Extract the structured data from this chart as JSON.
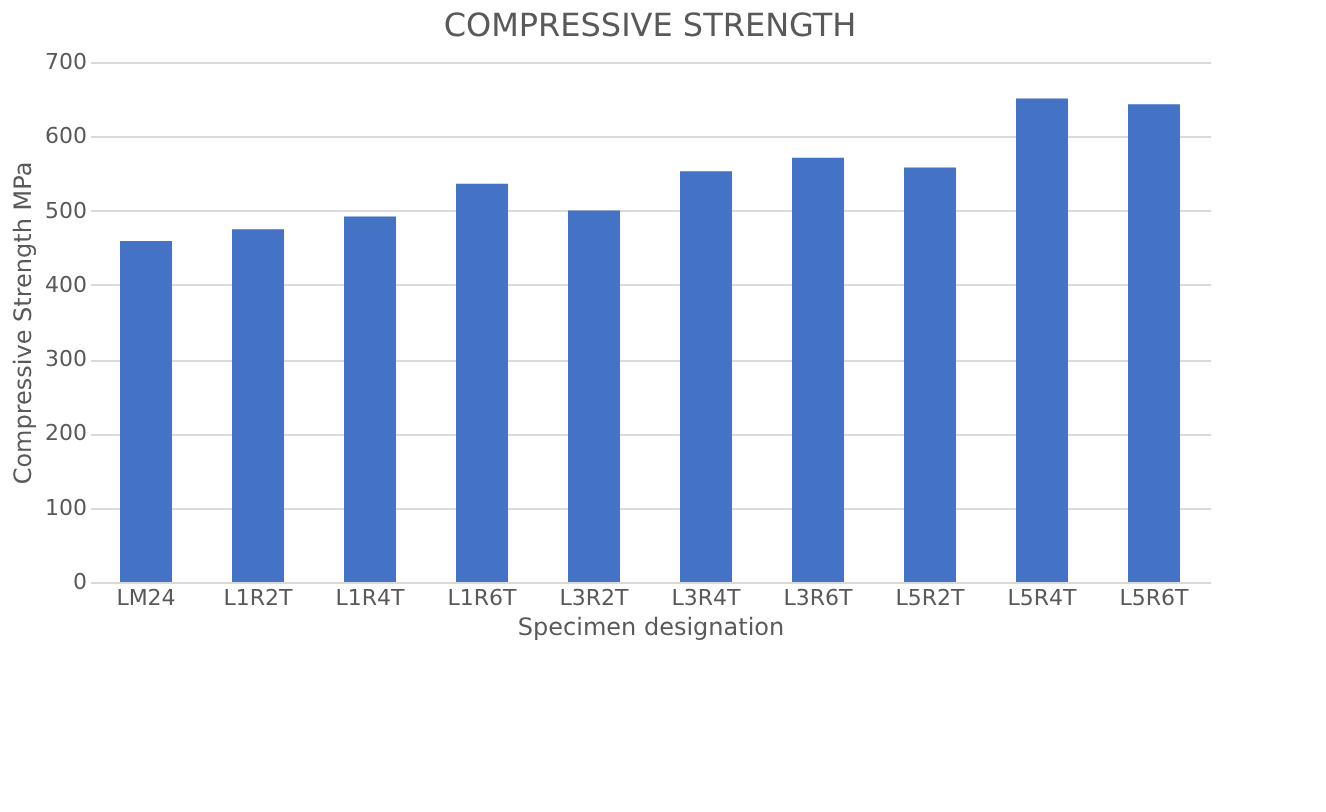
{
  "chart_data": {
    "type": "bar",
    "title": "COMPRESSIVE STRENGTH",
    "xlabel": "Specimen designation",
    "ylabel": "Compressive Strength MPa",
    "categories": [
      "LM24",
      "L1R2T",
      "L1R4T",
      "L1R6T",
      "L3R2T",
      "L3R4T",
      "L3R6T",
      "L5R2T",
      "L5R4T",
      "L5R6T"
    ],
    "values": [
      459,
      475,
      492,
      536,
      500,
      553,
      571,
      558,
      651,
      643
    ],
    "color": "#4472c4",
    "ylim": [
      0,
      700
    ],
    "yticks": [
      0,
      100,
      200,
      300,
      400,
      500,
      600,
      700
    ],
    "grid": "y"
  }
}
